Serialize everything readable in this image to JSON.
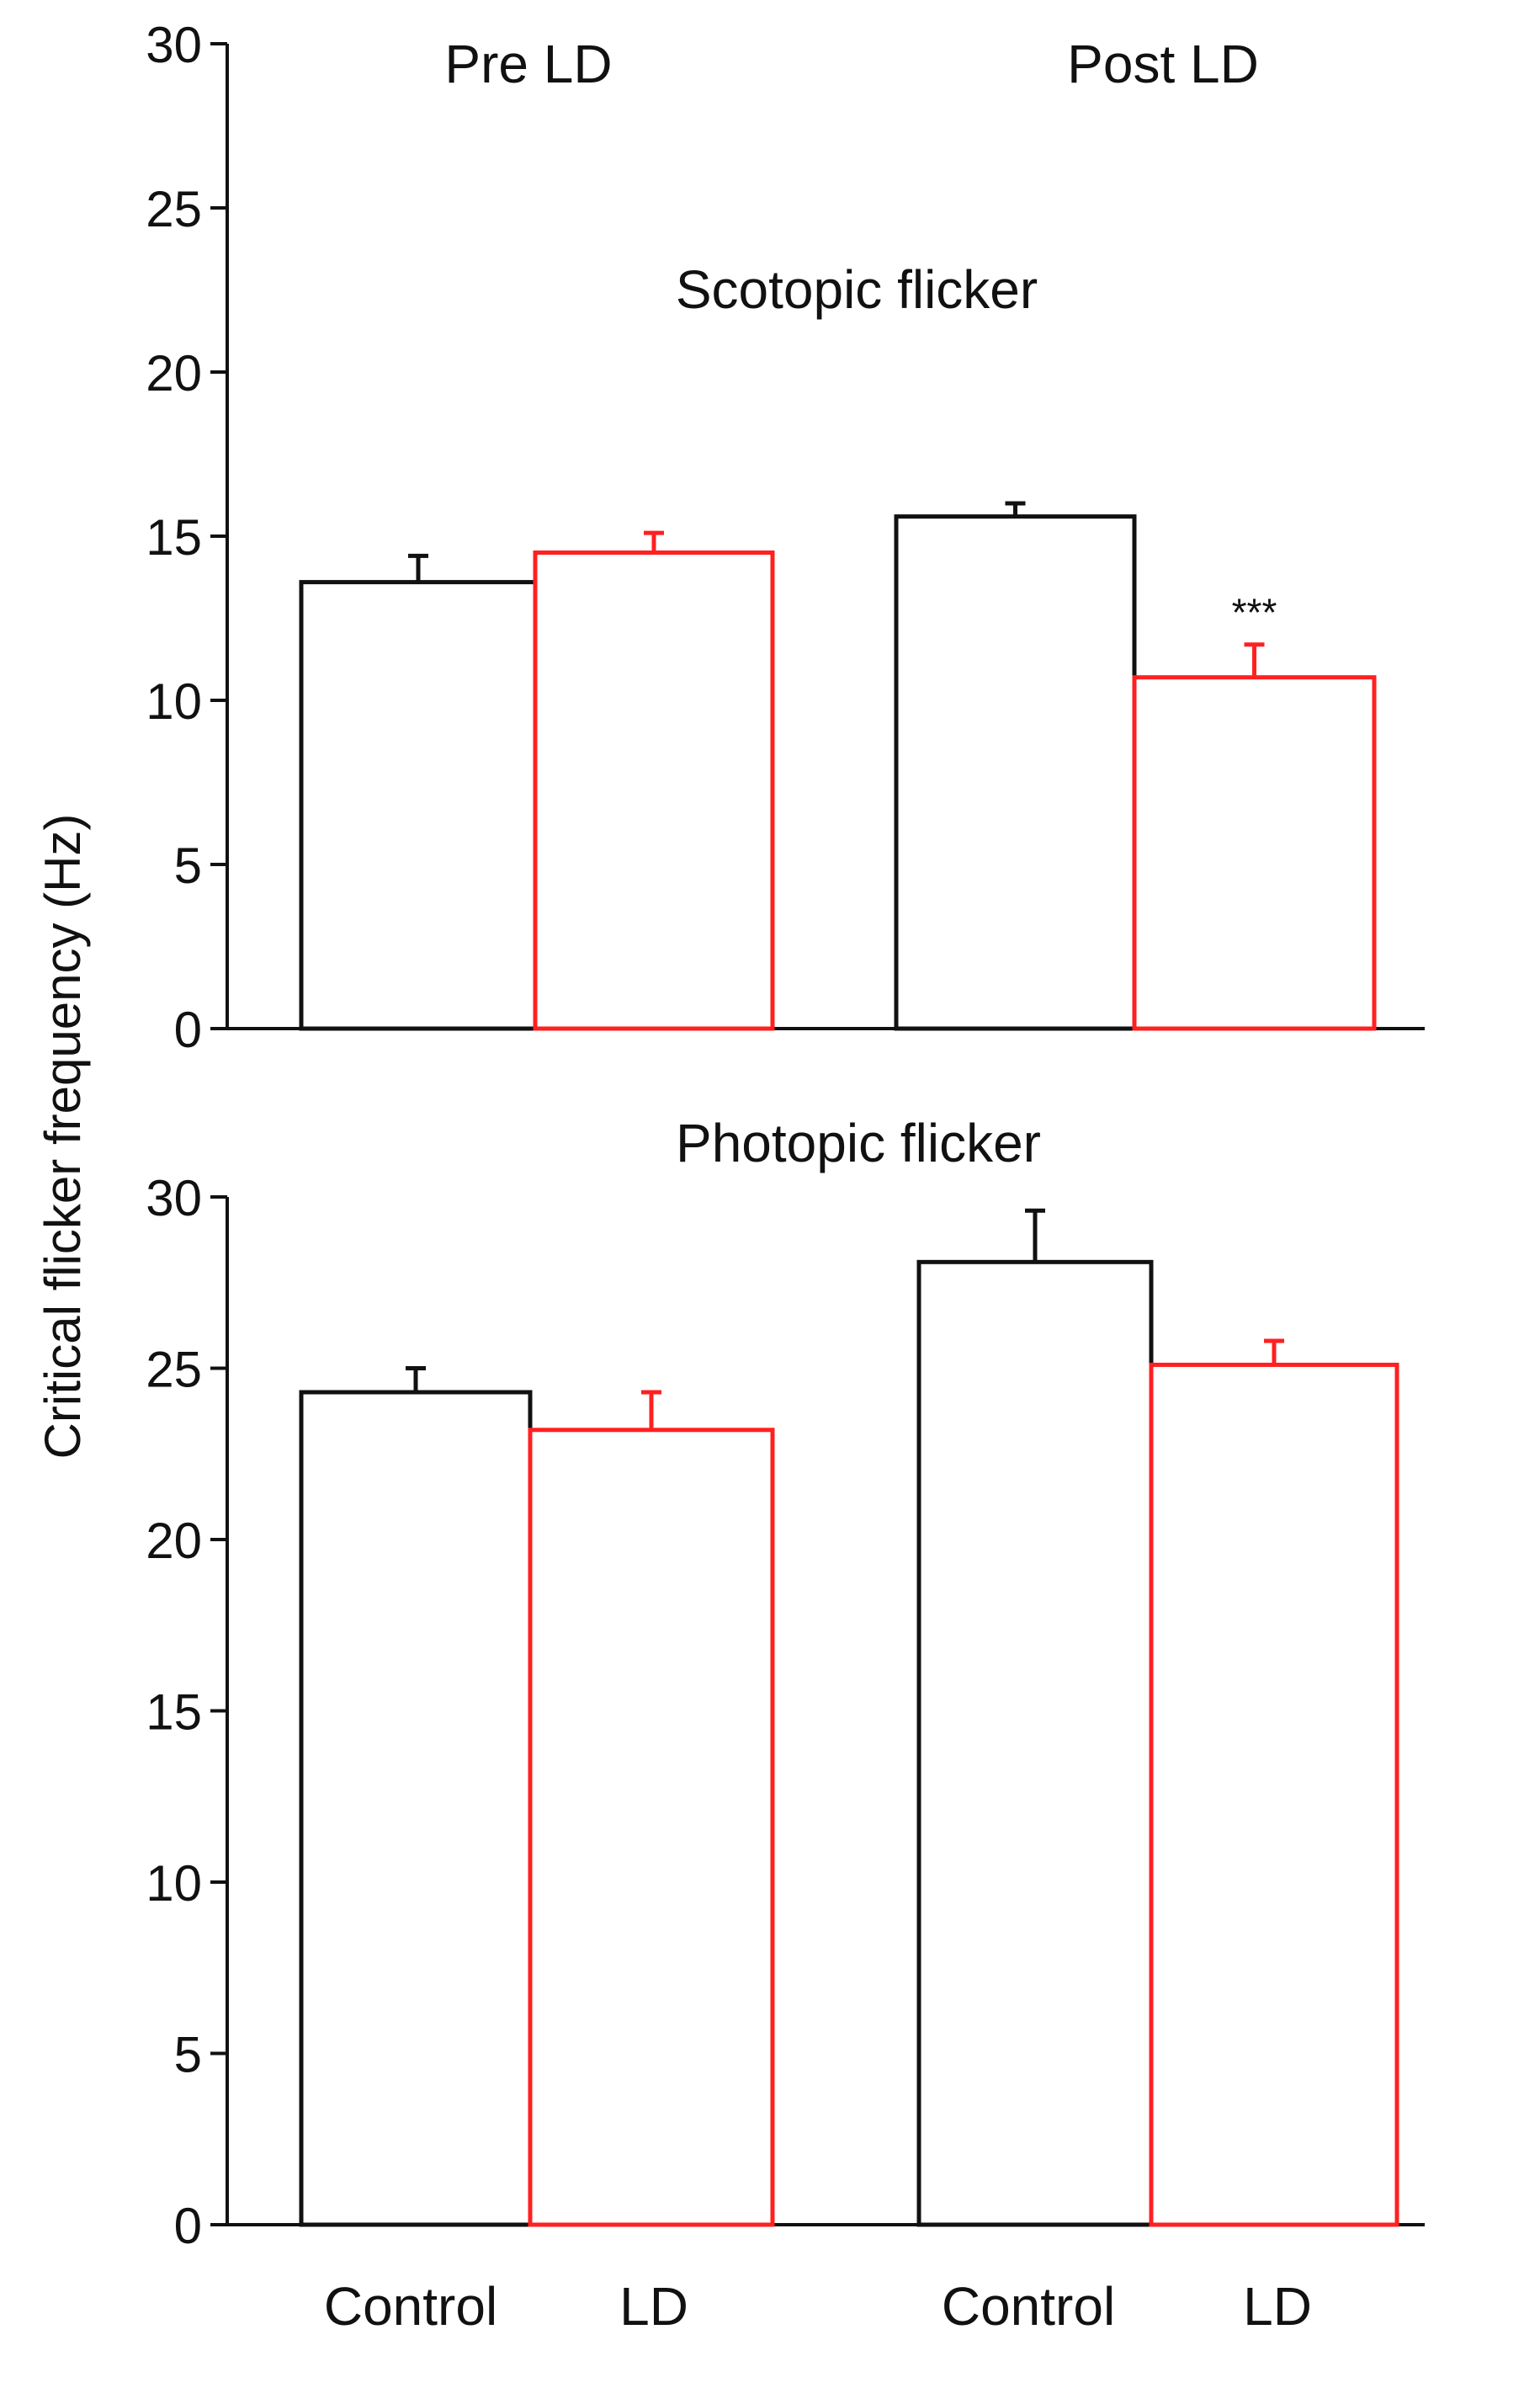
{
  "chart_data": [
    {
      "type": "bar",
      "title": "Scotopic flicker",
      "group_labels": [
        "Pre LD",
        "Post LD"
      ],
      "ylabel": "Critical flicker frequency (Hz)",
      "ylim": [
        0,
        30
      ],
      "yticks": [
        "0",
        "5",
        "10",
        "15",
        "20",
        "25",
        "30"
      ],
      "bars": [
        {
          "group": "Pre LD",
          "condition": "Control",
          "value": 13.6,
          "error": 0.8
        },
        {
          "group": "Pre LD",
          "condition": "LD",
          "value": 14.5,
          "error": 0.6
        },
        {
          "group": "Post LD",
          "condition": "Control",
          "value": 15.6,
          "error": 0.4
        },
        {
          "group": "Post LD",
          "condition": "LD",
          "value": 10.7,
          "error": 1.0,
          "annotation": "***"
        }
      ]
    },
    {
      "type": "bar",
      "title": "Photopic flicker",
      "ylim": [
        0,
        30
      ],
      "yticks": [
        "0",
        "5",
        "10",
        "15",
        "20",
        "25",
        "30"
      ],
      "xtick_labels": [
        "Control",
        "LD",
        "Control",
        "LD"
      ],
      "bars": [
        {
          "group": "Pre LD",
          "condition": "Control",
          "value": 24.3,
          "error": 0.7
        },
        {
          "group": "Pre LD",
          "condition": "LD",
          "value": 23.2,
          "error": 1.1
        },
        {
          "group": "Post LD",
          "condition": "Control",
          "value": 28.1,
          "error": 1.5
        },
        {
          "group": "Post LD",
          "condition": "LD",
          "value": 25.1,
          "error": 0.7
        }
      ]
    }
  ],
  "colors": {
    "Control": "#111111",
    "LD": "#ff2020"
  }
}
